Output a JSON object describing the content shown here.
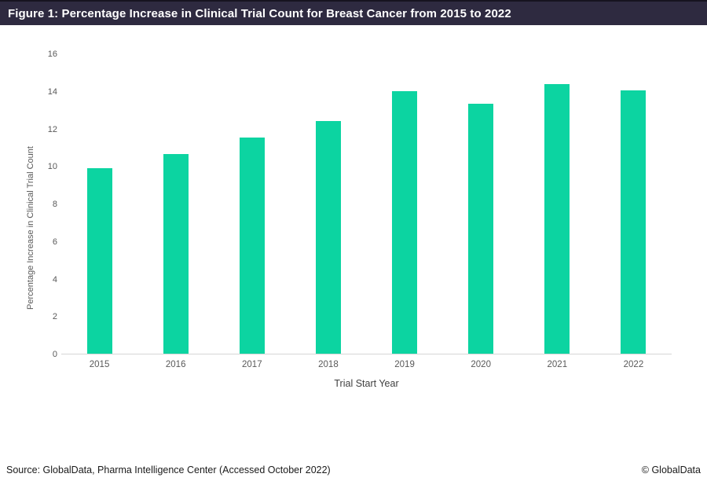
{
  "title_bar": {
    "text": "Figure 1: Percentage Increase in Clinical Trial Count for Breast Cancer from 2015 to 2022",
    "background": "#2e2a40",
    "text_color": "#ffffff"
  },
  "chart_data": {
    "type": "bar",
    "categories": [
      "2015",
      "2016",
      "2017",
      "2018",
      "2019",
      "2020",
      "2021",
      "2022"
    ],
    "values": [
      9.9,
      10.65,
      11.5,
      12.4,
      14.0,
      13.3,
      14.35,
      14.05
    ],
    "title": "Figure 1: Percentage Increase in Clinical Trial Count for Breast Cancer from 2015 to 2022",
    "xlabel": "Trial Start Year",
    "ylabel": "Percentage Increase in Clinical Trial Count",
    "ylim": [
      0,
      16
    ],
    "ytick_step": 2,
    "bar_color": "#0cd4a1",
    "grid": false,
    "legend_position": "none"
  },
  "footer": {
    "source": "Source: GlobalData, Pharma Intelligence Center (Accessed October 2022)",
    "copyright": "© GlobalData"
  }
}
